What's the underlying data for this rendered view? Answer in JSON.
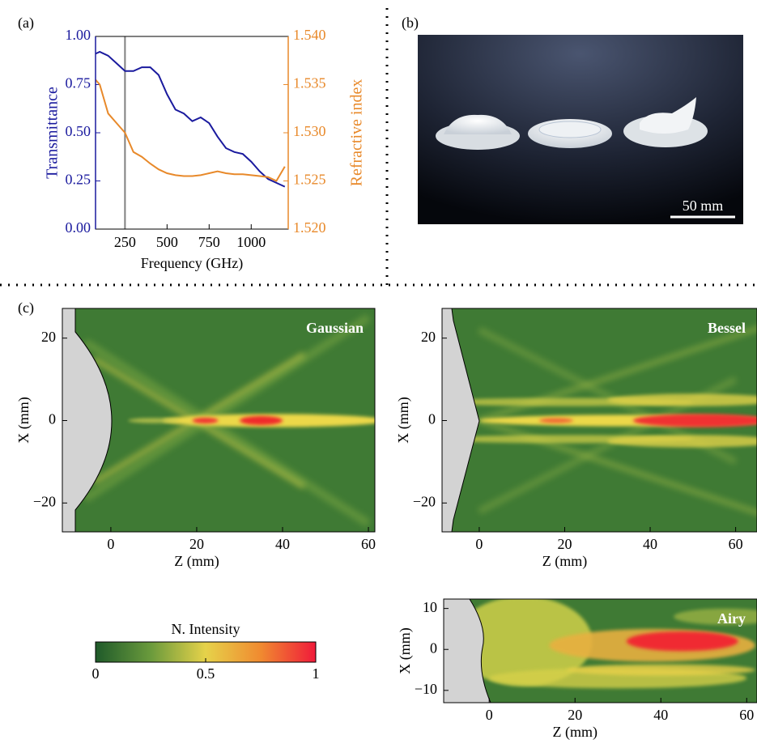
{
  "chart_data": [
    {
      "type": "line",
      "panel_label": "(a)",
      "xlabel": "Frequency (GHz)",
      "ylabel": "Transmittance",
      "y2label": "Refractive index",
      "x": [
        75,
        100,
        150,
        200,
        250,
        300,
        350,
        400,
        450,
        500,
        550,
        600,
        650,
        700,
        750,
        800,
        850,
        900,
        950,
        1000,
        1050,
        1100,
        1150,
        1200
      ],
      "series": [
        {
          "name": "Transmittance",
          "color": "#1a1a9e",
          "axis": "y",
          "values": [
            0.91,
            0.92,
            0.9,
            0.86,
            0.82,
            0.82,
            0.84,
            0.84,
            0.8,
            0.7,
            0.62,
            0.6,
            0.56,
            0.58,
            0.55,
            0.48,
            0.42,
            0.4,
            0.39,
            0.35,
            0.3,
            0.26,
            0.24,
            0.22
          ]
        },
        {
          "name": "Refractive index",
          "color": "#e8892a",
          "axis": "y2",
          "values": [
            1.5355,
            1.535,
            1.532,
            1.531,
            1.53,
            1.528,
            1.5275,
            1.5268,
            1.5262,
            1.5258,
            1.5256,
            1.5255,
            1.5255,
            1.5256,
            1.5258,
            1.526,
            1.5258,
            1.5257,
            1.5257,
            1.5256,
            1.5255,
            1.5254,
            1.525,
            1.5265
          ]
        }
      ],
      "marker_x": 250,
      "marker_color": "#808080",
      "xlim": [
        75,
        1220
      ],
      "xticks": [
        250,
        500,
        750,
        1000
      ],
      "ylim": [
        0,
        1
      ],
      "yticks": [
        {
          "value": 0,
          "label": "0.00"
        },
        {
          "value": 0.25,
          "label": "0.25"
        },
        {
          "value": 0.5,
          "label": "0.50"
        },
        {
          "value": 0.75,
          "label": "0.75"
        },
        {
          "value": 1,
          "label": "1.00"
        }
      ],
      "y2lim": [
        1.52,
        1.54
      ],
      "y2ticks": [
        {
          "value": 1.52,
          "label": "1.520"
        },
        {
          "value": 1.525,
          "label": "1.525"
        },
        {
          "value": 1.53,
          "label": "1.530"
        },
        {
          "value": 1.535,
          "label": "1.535"
        },
        {
          "value": 1.54,
          "label": "1.540"
        }
      ]
    },
    {
      "type": "heatmap",
      "panel_label": "(c)",
      "title": "Gaussian",
      "xlabel": "Z (mm)",
      "ylabel": "X (mm)",
      "xlim": [
        -11.3,
        61.5
      ],
      "xticks": [
        0,
        20,
        40,
        60
      ],
      "ylim": [
        -27,
        27.2
      ],
      "yticks": [
        {
          "value": -20,
          "label": "−20"
        },
        0,
        20
      ]
    },
    {
      "type": "heatmap",
      "title": "Bessel",
      "xlabel": "Z (mm)",
      "ylabel": "X (mm)",
      "xlim": [
        -8.7,
        65
      ],
      "xticks": [
        0,
        20,
        40,
        60
      ],
      "ylim": [
        -27,
        27.2
      ],
      "yticks": [
        {
          "value": -20,
          "label": "−20"
        },
        0,
        20
      ]
    },
    {
      "type": "heatmap",
      "title": "Airy",
      "xlabel": "Z (mm)",
      "ylabel": "X (mm)",
      "xlim": [
        -10.6,
        62.4
      ],
      "xticks": [
        0,
        20,
        40,
        60
      ],
      "ylim": [
        -13,
        12.3
      ],
      "yticks": [
        {
          "value": -10,
          "label": "−10"
        },
        0,
        10
      ]
    }
  ],
  "colorbar": {
    "title": "N. Intensity",
    "lim": [
      0,
      1
    ],
    "ticks": [
      0,
      0.5,
      1
    ],
    "colors": [
      "#1f5a2a",
      "#6a9a3c",
      "#e6d24a",
      "#f08a30",
      "#f01a3a"
    ]
  },
  "photo": {
    "panel_label": "(b)",
    "scale_bar": "50 mm"
  }
}
